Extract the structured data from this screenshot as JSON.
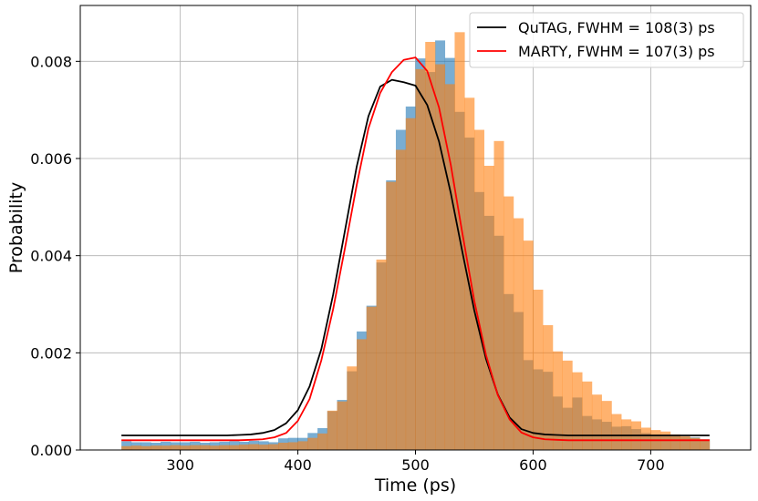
{
  "chart_data": {
    "type": "bar",
    "xlabel": "Time (ps)",
    "ylabel": "Probability",
    "xlim": [
      215,
      785
    ],
    "ylim": [
      0,
      0.00915
    ],
    "grid": true,
    "legend_position": "top-right",
    "x_ticks": [
      300,
      400,
      500,
      600,
      700
    ],
    "x_tick_labels": [
      "300",
      "400",
      "500",
      "600",
      "700"
    ],
    "y_ticks": [
      0,
      0.002,
      0.004,
      0.006,
      0.008
    ],
    "y_tick_labels": [
      "0.000",
      "0.002",
      "0.004",
      "0.006",
      "0.008"
    ],
    "bin_edges": [
      250,
      258.3,
      266.7,
      275,
      283.3,
      291.7,
      300,
      308.3,
      316.7,
      325,
      333.3,
      341.7,
      350,
      358.3,
      366.7,
      375,
      383.3,
      391.7,
      400,
      408.3,
      416.7,
      425,
      433.3,
      441.7,
      450,
      458.3,
      466.7,
      475,
      483.3,
      491.7,
      500,
      508.3,
      516.7,
      525,
      533.3,
      541.7,
      550,
      558.3,
      566.7,
      575,
      583.3,
      591.7,
      600,
      608.3,
      616.7,
      625,
      633.3,
      641.7,
      650,
      658.3,
      666.7,
      675,
      683.3,
      691.7,
      700,
      708.3,
      716.7,
      725,
      733.3,
      741.7,
      750
    ],
    "histograms": [
      {
        "name": "QuTAG",
        "color": "#1f77b4",
        "values": [
          0.00018,
          0.00016,
          0.00016,
          0.00015,
          0.00017,
          0.00016,
          0.00016,
          0.00017,
          0.00015,
          0.00016,
          0.00017,
          0.00018,
          0.00017,
          0.00019,
          0.00018,
          0.00016,
          0.00024,
          0.00025,
          0.00025,
          0.00035,
          0.00045,
          0.0008,
          0.00103,
          0.00162,
          0.00244,
          0.00297,
          0.00386,
          0.00555,
          0.00659,
          0.00707,
          0.00806,
          0.00778,
          0.00843,
          0.00807,
          0.00696,
          0.00643,
          0.00531,
          0.00482,
          0.00441,
          0.00321,
          0.00284,
          0.00185,
          0.00166,
          0.00161,
          0.0011,
          0.00087,
          0.00108,
          0.0007,
          0.00063,
          0.00058,
          0.00048,
          0.00049,
          0.00043,
          0.00035,
          0.00031,
          0.0003,
          0.00028,
          0.00027,
          0.00026,
          0.00022
        ]
      },
      {
        "name": "MARTY",
        "color": "#ff7f0e",
        "values": [
          8e-05,
          9e-05,
          8e-05,
          9e-05,
          9e-05,
          0.0001,
          9e-05,
          0.0001,
          0.0001,
          9e-05,
          0.0001,
          0.0001,
          0.00011,
          0.00012,
          0.00011,
          0.00012,
          0.00015,
          0.00016,
          0.00018,
          0.00025,
          0.00034,
          0.00081,
          0.001,
          0.00172,
          0.00228,
          0.00295,
          0.00392,
          0.00552,
          0.00618,
          0.00683,
          0.00784,
          0.0084,
          0.00794,
          0.00753,
          0.0086,
          0.00725,
          0.00659,
          0.00585,
          0.00636,
          0.00522,
          0.00477,
          0.00431,
          0.0033,
          0.00257,
          0.00203,
          0.00184,
          0.0016,
          0.00141,
          0.00114,
          0.00101,
          0.00074,
          0.00063,
          0.00059,
          0.00046,
          0.00041,
          0.00038,
          0.00032,
          0.00028,
          0.00025,
          0.00022
        ]
      }
    ],
    "series": [
      {
        "name": "QuTAG, FWHM = 108(3) ps",
        "color": "#000000",
        "x": [
          250,
          260,
          270,
          280,
          290,
          300,
          310,
          320,
          330,
          340,
          350,
          360,
          370,
          380,
          390,
          400,
          410,
          420,
          430,
          440,
          450,
          460,
          470,
          480,
          490,
          500,
          510,
          520,
          530,
          540,
          550,
          560,
          570,
          580,
          590,
          600,
          610,
          620,
          630,
          640,
          650,
          660,
          670,
          680,
          690,
          700,
          710,
          720,
          730,
          740,
          750
        ],
        "y": [
          0.0003,
          0.0003,
          0.0003,
          0.0003,
          0.0003,
          0.0003,
          0.0003,
          0.0003,
          0.0003,
          0.0003,
          0.00031,
          0.00032,
          0.00035,
          0.00041,
          0.00055,
          0.00082,
          0.00131,
          0.00208,
          0.0032,
          0.00451,
          0.00583,
          0.00687,
          0.00748,
          0.00762,
          0.00757,
          0.0075,
          0.0071,
          0.00635,
          0.00529,
          0.00406,
          0.00287,
          0.00187,
          0.00114,
          0.00067,
          0.00043,
          0.00035,
          0.00032,
          0.00031,
          0.0003,
          0.0003,
          0.0003,
          0.0003,
          0.0003,
          0.0003,
          0.0003,
          0.0003,
          0.0003,
          0.0003,
          0.0003,
          0.0003,
          0.0003
        ]
      },
      {
        "name": "MARTY, FWHM = 107(3) ps",
        "color": "#ff0000",
        "x": [
          250,
          260,
          270,
          280,
          290,
          300,
          310,
          320,
          330,
          340,
          350,
          360,
          370,
          380,
          390,
          400,
          410,
          420,
          430,
          440,
          450,
          460,
          470,
          480,
          490,
          500,
          510,
          520,
          530,
          540,
          550,
          560,
          570,
          580,
          590,
          600,
          610,
          620,
          630,
          640,
          650,
          660,
          670,
          680,
          690,
          700,
          710,
          720,
          730,
          740,
          750
        ],
        "y": [
          0.0002,
          0.0002,
          0.0002,
          0.0002,
          0.0002,
          0.0002,
          0.0002,
          0.0002,
          0.0002,
          0.0002,
          0.0002,
          0.00021,
          0.00022,
          0.00026,
          0.00035,
          0.0006,
          0.00105,
          0.00185,
          0.0029,
          0.00415,
          0.00545,
          0.00662,
          0.00735,
          0.00778,
          0.00803,
          0.00808,
          0.0078,
          0.00705,
          0.00587,
          0.00444,
          0.00307,
          0.00195,
          0.00113,
          0.00063,
          0.00036,
          0.00026,
          0.00022,
          0.00021,
          0.0002,
          0.0002,
          0.0002,
          0.0002,
          0.0002,
          0.0002,
          0.0002,
          0.0002,
          0.0002,
          0.0002,
          0.0002,
          0.0002,
          0.0002
        ]
      }
    ]
  }
}
